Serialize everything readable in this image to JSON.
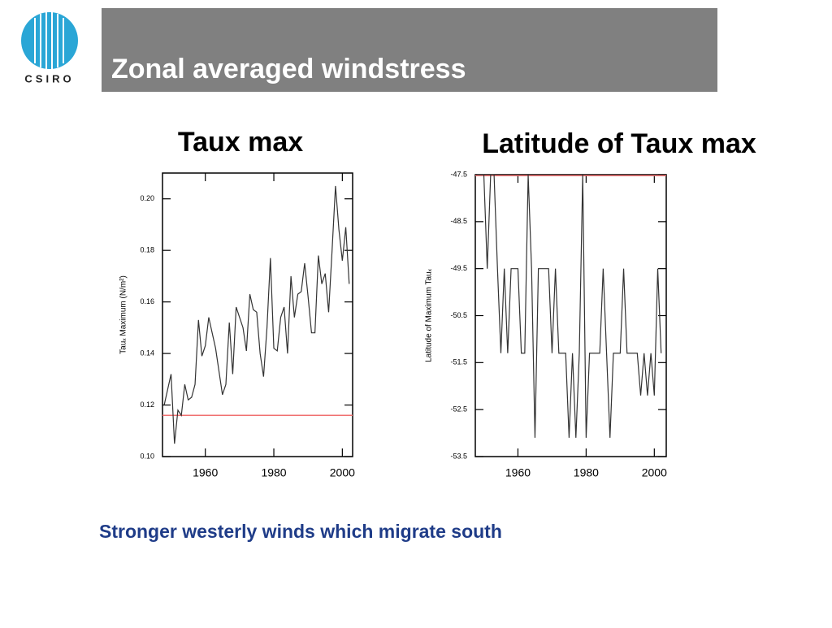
{
  "logo": "CSIRO",
  "header": {
    "title": "Zonal averaged windstress"
  },
  "caption": "Stronger westerly winds which migrate south",
  "chart_data": [
    {
      "type": "line",
      "title": "Taux max",
      "y_label": "Tauₓ Maximum (N/m²)",
      "color": "#333333",
      "x": [
        1948,
        1949,
        1950,
        1951,
        1952,
        1953,
        1954,
        1955,
        1956,
        1957,
        1958,
        1959,
        1960,
        1961,
        1962,
        1963,
        1964,
        1965,
        1966,
        1967,
        1968,
        1969,
        1970,
        1971,
        1972,
        1973,
        1974,
        1975,
        1976,
        1977,
        1978,
        1979,
        1980,
        1981,
        1982,
        1983,
        1984,
        1985,
        1986,
        1987,
        1988,
        1989,
        1990,
        1991,
        1992,
        1993,
        1994,
        1995,
        1996,
        1997,
        1998,
        1999,
        2000,
        2001,
        2002
      ],
      "values": [
        0.12,
        0.126,
        0.132,
        0.105,
        0.118,
        0.116,
        0.128,
        0.122,
        0.123,
        0.128,
        0.153,
        0.139,
        0.143,
        0.154,
        0.148,
        0.142,
        0.133,
        0.124,
        0.128,
        0.152,
        0.132,
        0.158,
        0.154,
        0.15,
        0.141,
        0.163,
        0.157,
        0.156,
        0.14,
        0.131,
        0.15,
        0.177,
        0.142,
        0.141,
        0.154,
        0.158,
        0.14,
        0.17,
        0.154,
        0.163,
        0.164,
        0.175,
        0.162,
        0.148,
        0.148,
        0.178,
        0.167,
        0.171,
        0.156,
        0.18,
        0.205,
        0.188,
        0.176,
        0.189,
        0.167
      ],
      "reference_line": 0.116,
      "reference_color": "#f07070",
      "xlim": [
        1947.5,
        2003
      ],
      "xticks": [
        1960,
        1980,
        2000
      ],
      "ylim": [
        0.1,
        0.21
      ],
      "yticks": [
        {
          "value": 0.1,
          "label": "0.10"
        },
        0.12,
        0.14,
        0.16,
        0.18,
        {
          "value": 0.2,
          "label": "0.20"
        }
      ]
    },
    {
      "type": "line",
      "title": "Latitude of Taux max",
      "y_label": "Latitude of Maximum Tauₓ",
      "color": "#333333",
      "x": [
        1948,
        1949,
        1950,
        1951,
        1952,
        1953,
        1954,
        1955,
        1956,
        1957,
        1958,
        1959,
        1960,
        1961,
        1962,
        1963,
        1964,
        1965,
        1966,
        1967,
        1968,
        1969,
        1970,
        1971,
        1972,
        1973,
        1974,
        1975,
        1976,
        1977,
        1978,
        1979,
        1980,
        1981,
        1982,
        1983,
        1984,
        1985,
        1986,
        1987,
        1988,
        1989,
        1990,
        1991,
        1992,
        1993,
        1994,
        1995,
        1996,
        1997,
        1998,
        1999,
        2000,
        2001,
        2002
      ],
      "values": [
        -47.5,
        -47.5,
        -47.5,
        -49.5,
        -47.5,
        -47.5,
        -49.5,
        -51.3,
        -49.5,
        -51.3,
        -49.5,
        -49.5,
        -49.5,
        -51.3,
        -51.3,
        -47.5,
        -49.5,
        -53.1,
        -49.5,
        -49.5,
        -49.5,
        -49.5,
        -51.3,
        -49.5,
        -51.3,
        -51.3,
        -51.3,
        -53.1,
        -51.3,
        -53.1,
        -51.3,
        -47.5,
        -53.1,
        -51.3,
        -51.3,
        -51.3,
        -51.3,
        -49.5,
        -51.3,
        -53.1,
        -51.3,
        -51.3,
        -51.3,
        -49.5,
        -51.3,
        -51.3,
        -51.3,
        -51.3,
        -52.2,
        -51.3,
        -52.2,
        -51.3,
        -52.2,
        -49.5,
        -51.3
      ],
      "reference_line": -47.52,
      "reference_color": "#f07070",
      "xlim": [
        1947.5,
        2003.5
      ],
      "xticks": [
        1960,
        1980,
        2000
      ],
      "ylim": [
        -53.5,
        -47.5
      ],
      "yticks": [
        -53.5,
        -52.5,
        -51.5,
        -50.5,
        -49.5,
        -48.5,
        -47.5
      ]
    }
  ]
}
